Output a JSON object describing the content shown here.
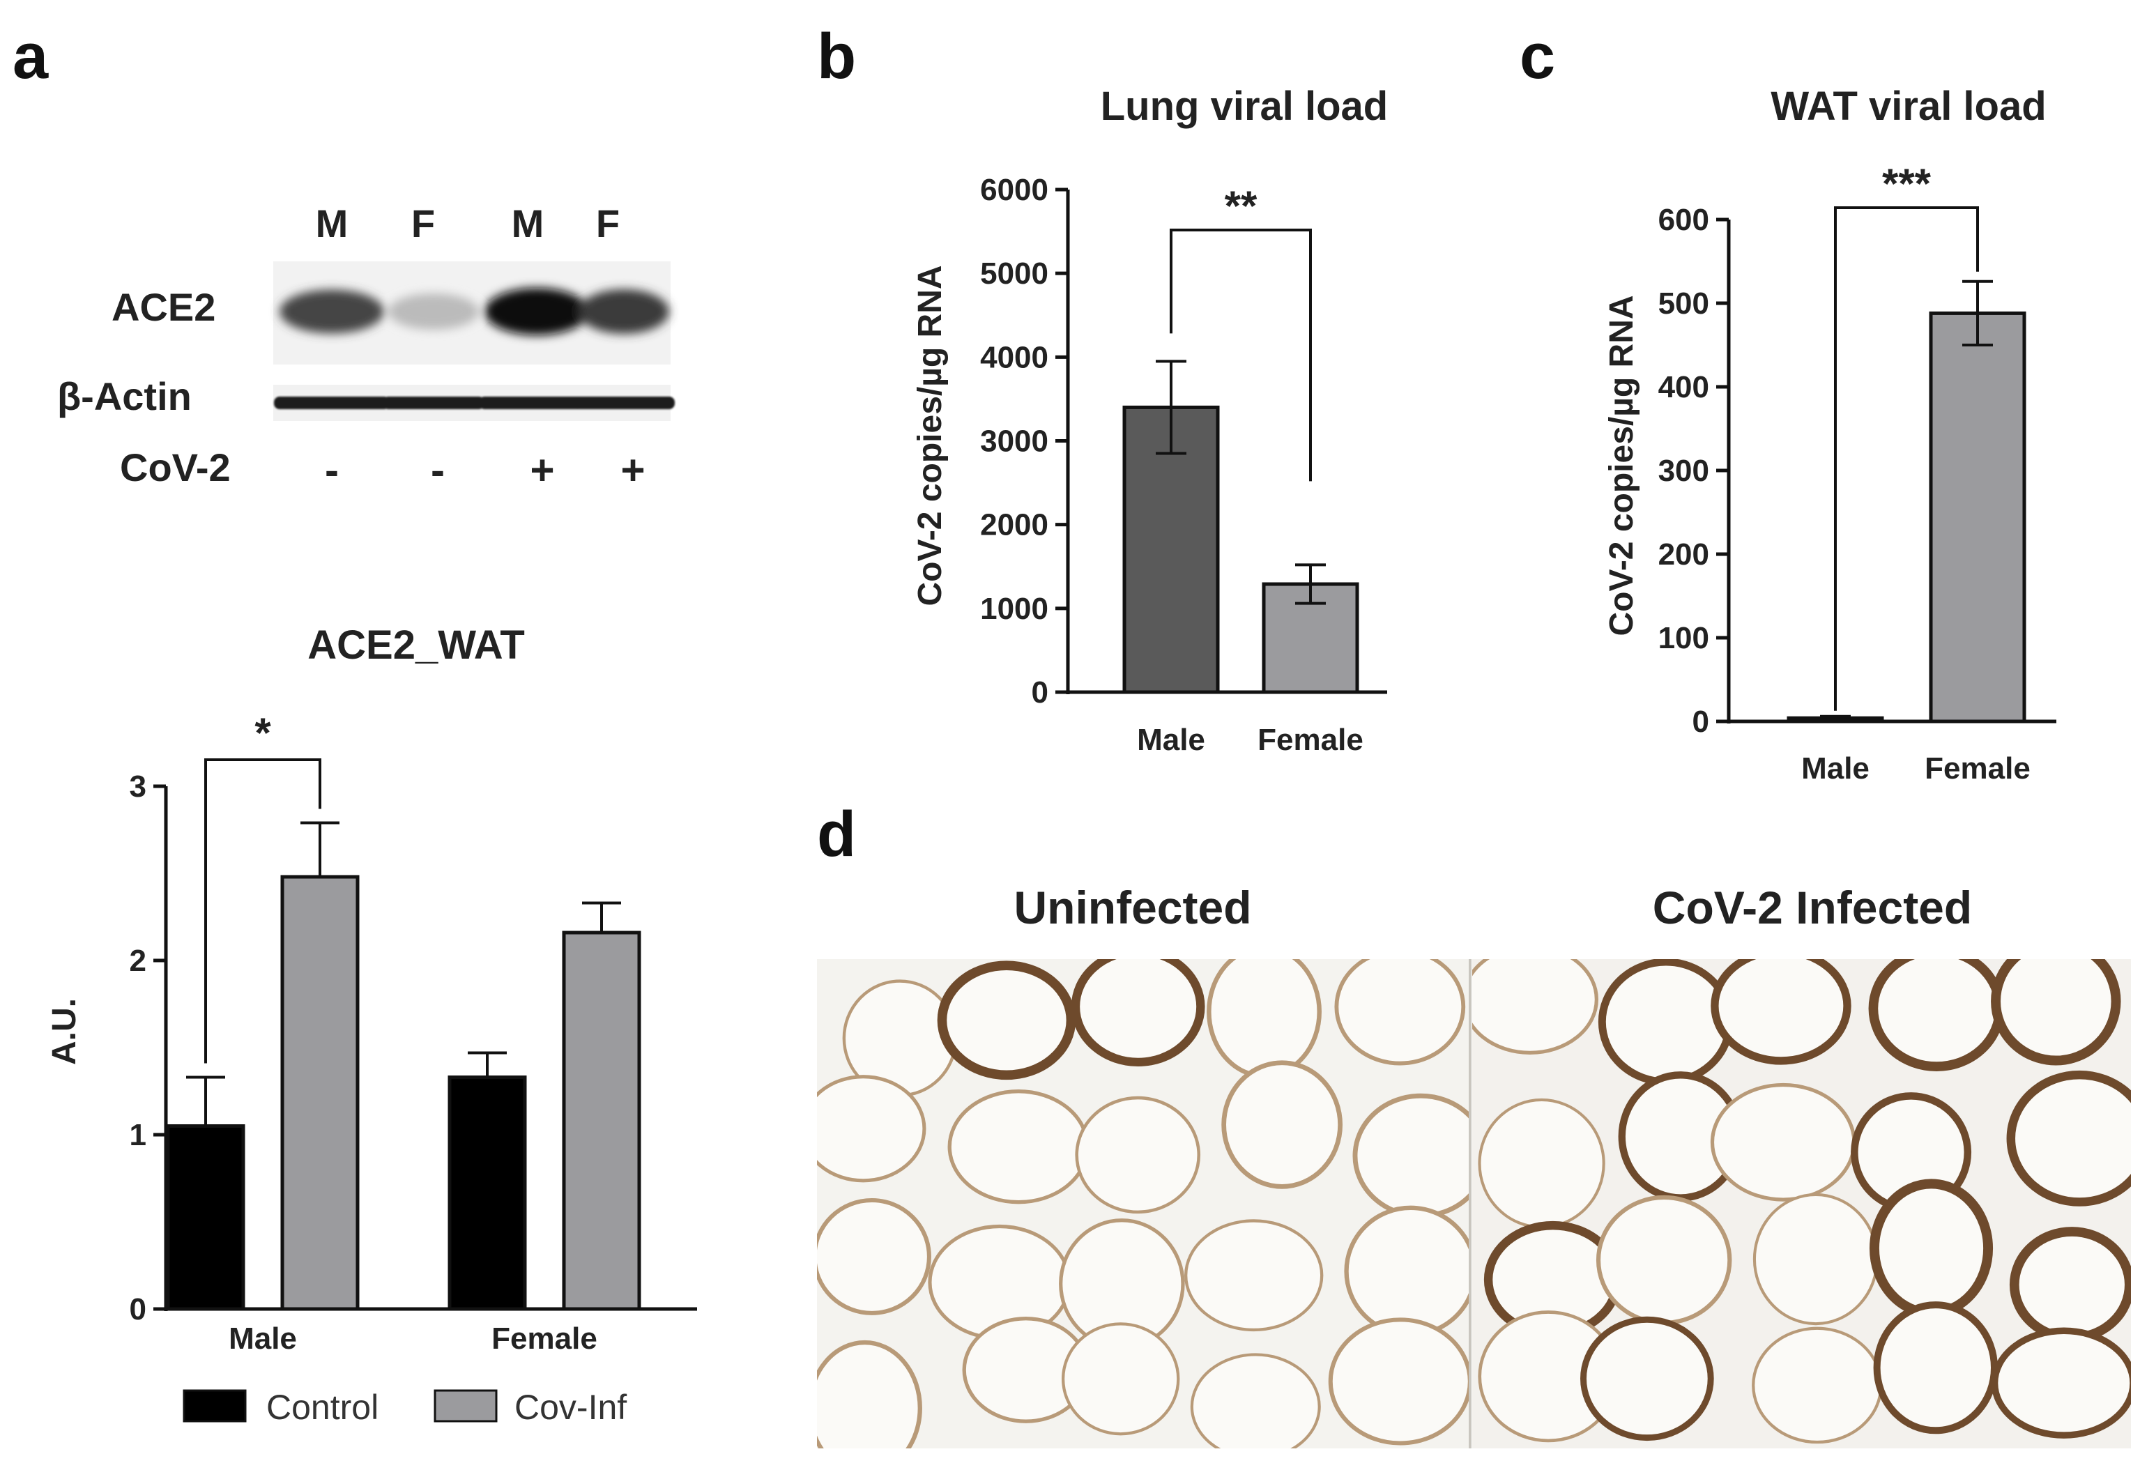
{
  "panels": {
    "a": {
      "letter": "a",
      "blot": {
        "lane_labels": [
          "M",
          "F",
          "M",
          "F"
        ],
        "row_labels": [
          "ACE2",
          "β-Actin"
        ],
        "treatment_label": "CoV-2",
        "treatment_signs": [
          "-",
          "-",
          "+",
          "+"
        ],
        "ace2_band_intensity": [
          0.75,
          0.2,
          1.0,
          0.8
        ],
        "actin_band_intensity": [
          0.95,
          0.95,
          0.95,
          0.95
        ]
      }
    },
    "b": {
      "letter": "b"
    },
    "c": {
      "letter": "c"
    },
    "d": {
      "letter": "d",
      "image_labels": [
        "Uninfected",
        "CoV-2 Infected"
      ]
    }
  },
  "colors": {
    "control": "#000000",
    "cov_inf": "#9b9b9e",
    "male_dark": "#5a5a5a",
    "female_gray": "#9b9b9e",
    "tissue_stain_light": "#b89a78",
    "tissue_stain_dark": "#6e4a2c"
  },
  "chart_data": [
    {
      "id": "a",
      "type": "bar",
      "title": "ACE2_WAT",
      "ylabel": "A.U.",
      "xlabel": "",
      "categories": [
        "Male",
        "Female"
      ],
      "series": [
        {
          "name": "Control",
          "values": [
            1.05,
            1.33
          ],
          "errors": [
            0.28,
            0.14
          ]
        },
        {
          "name": "Cov-Inf",
          "values": [
            2.48,
            2.16
          ],
          "errors": [
            0.31,
            0.17
          ]
        }
      ],
      "ylim": [
        0,
        3
      ],
      "yticks": [
        "0",
        "1",
        "2",
        "3"
      ],
      "significance": [
        {
          "category": "Male",
          "label": "*"
        }
      ],
      "legend": "bottom"
    },
    {
      "id": "b",
      "type": "bar",
      "title": "Lung viral load",
      "ylabel": "CoV-2 copies/µg RNA",
      "xlabel": "",
      "categories": [
        "Male",
        "Female"
      ],
      "values": [
        3400,
        1290
      ],
      "errors": [
        550,
        230
      ],
      "ylim": [
        0,
        6000
      ],
      "yticks": [
        "0",
        "1000",
        "2000",
        "3000",
        "4000",
        "5000",
        "6000"
      ],
      "significance": [
        {
          "label": "**"
        }
      ]
    },
    {
      "id": "c",
      "type": "bar",
      "title": "WAT viral load",
      "ylabel": "CoV-2 copies/µg RNA",
      "xlabel": "",
      "categories": [
        "Male",
        "Female"
      ],
      "values": [
        4,
        488
      ],
      "errors": [
        2,
        38
      ],
      "ylim": [
        0,
        600
      ],
      "yticks": [
        "0",
        "100",
        "200",
        "300",
        "400",
        "500",
        "600"
      ],
      "significance": [
        {
          "label": "***"
        }
      ]
    }
  ]
}
